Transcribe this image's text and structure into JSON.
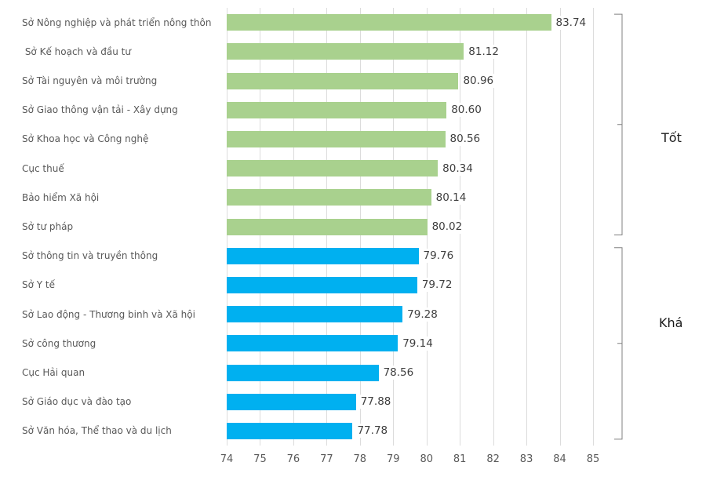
{
  "chart_data": {
    "type": "bar",
    "orientation": "horizontal",
    "title": "",
    "xlabel": "",
    "ylabel": "",
    "xlim": [
      74,
      85
    ],
    "x_ticks": [
      74,
      75,
      76,
      77,
      78,
      79,
      80,
      81,
      82,
      83,
      84,
      85
    ],
    "grid": "vertical-only",
    "legend": "none",
    "categories": [
      "Sở Nông nghiệp và phát triển nông thôn",
      " Sở Kế hoạch và đầu tư",
      "Sở Tài nguyên và môi trường",
      "Sở Giao thông vận tải - Xây dựng",
      "Sở Khoa học và Công nghệ",
      "Cục thuế",
      "Bảo hiểm Xã hội",
      "Sở tư pháp",
      "Sở thông tin và truyền thông",
      "Sở Y tế",
      "Sở Lao động - Thương binh và Xã hội",
      "Sở công thương",
      "Cục Hải quan",
      "Sở Giáo dục và đào tạo",
      "Sở Văn hóa, Thể thao và du lịch"
    ],
    "values": [
      83.74,
      81.12,
      80.96,
      80.6,
      80.56,
      80.34,
      80.14,
      80.02,
      79.76,
      79.72,
      79.28,
      79.14,
      78.56,
      77.88,
      77.78
    ],
    "value_labels": [
      "83.74",
      "81.12",
      "80.96",
      "80.60",
      "80.56",
      "80.34",
      "80.14",
      "80.02",
      "79.76",
      "79.72",
      "79.28",
      "79.14",
      "78.56",
      "77.88",
      "77.78"
    ],
    "groups": [
      {
        "label": "Tốt",
        "from": 0,
        "to": 7,
        "color": "#A9D18E"
      },
      {
        "label": "Khá",
        "from": 8,
        "to": 14,
        "color": "#00B0F0"
      }
    ]
  },
  "colors": {
    "good_bar": "#A9D18E",
    "fair_bar": "#00B0F0",
    "gridline": "#DCDCDC",
    "category_text": "#595959",
    "value_text": "#404040",
    "tick_text": "#595959",
    "bracket": "#808080",
    "group_text": "#1A1A1A",
    "background": "#FFFFFF"
  }
}
